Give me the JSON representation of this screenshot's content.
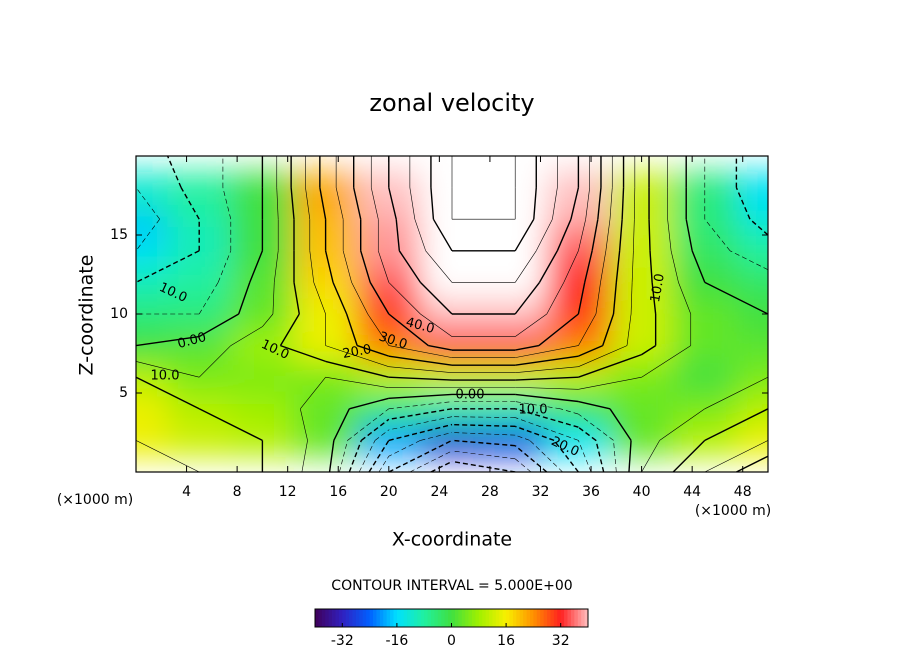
{
  "chart_data": {
    "type": "contour",
    "title": "zonal velocity",
    "x_label": "X-coordinate",
    "y_label": "Z-coordinate",
    "x_unit_left": "(×1000 m)",
    "x_unit_right": "(×1000 m)",
    "x": [
      0,
      5,
      10,
      15,
      20,
      25,
      30,
      35,
      40,
      45,
      50
    ],
    "y": [
      0,
      2,
      4,
      6,
      8,
      10,
      12,
      14,
      16,
      18,
      20
    ],
    "values": [
      [
        18,
        15,
        10,
        2,
        -30,
        -45,
        -40,
        -20,
        5,
        15,
        25
      ],
      [
        15,
        12,
        10,
        3,
        -20,
        -30,
        -28,
        -15,
        3,
        10,
        15
      ],
      [
        15,
        10,
        8,
        3,
        -5,
        -10,
        -10,
        -3,
        3,
        5,
        10
      ],
      [
        10,
        5,
        5,
        5,
        10,
        12,
        12,
        10,
        5,
        0,
        5
      ],
      [
        0,
        2,
        8,
        15,
        25,
        33,
        33,
        25,
        12,
        3,
        2
      ],
      [
        -5,
        -5,
        3,
        15,
        30,
        40,
        40,
        30,
        12,
        3,
        0
      ],
      [
        -10,
        -8,
        2,
        18,
        35,
        45,
        45,
        32,
        12,
        0,
        -3
      ],
      [
        -15,
        -10,
        0,
        20,
        38,
        50,
        50,
        35,
        12,
        -3,
        -8
      ],
      [
        -18,
        -10,
        0,
        20,
        38,
        55,
        55,
        38,
        12,
        -5,
        -12
      ],
      [
        -15,
        -8,
        0,
        22,
        40,
        55,
        55,
        40,
        12,
        -5,
        -15
      ],
      [
        -12,
        -8,
        0,
        22,
        40,
        55,
        55,
        40,
        12,
        -5,
        -15
      ]
    ],
    "xlim": [
      0,
      50
    ],
    "ylim": [
      0,
      20
    ],
    "xticks": [
      4,
      8,
      12,
      16,
      20,
      24,
      28,
      32,
      36,
      40,
      44,
      48
    ],
    "yticks": [
      5,
      10,
      15
    ],
    "clim": [
      -40,
      40
    ],
    "colorbar_ticks": [
      -32,
      -16,
      0,
      16,
      32
    ],
    "colormap": [
      "#40005a",
      "#3020c0",
      "#0060ff",
      "#00e0ff",
      "#20f0a0",
      "#40e040",
      "#a0f000",
      "#f8f000",
      "#ff9000",
      "#ff2020",
      "#ffc0c0"
    ],
    "above_color": "#ffffff",
    "contour_interval": {
      "value": 5,
      "label": "CONTOUR INTERVAL = 5.000E+00"
    },
    "contour_labels": [
      "40.0",
      "30.0",
      "20.0",
      "10.0",
      "0.00",
      "10.0",
      "10.0",
      "0.00",
      "10.0",
      "20.0",
      "10.0"
    ]
  }
}
